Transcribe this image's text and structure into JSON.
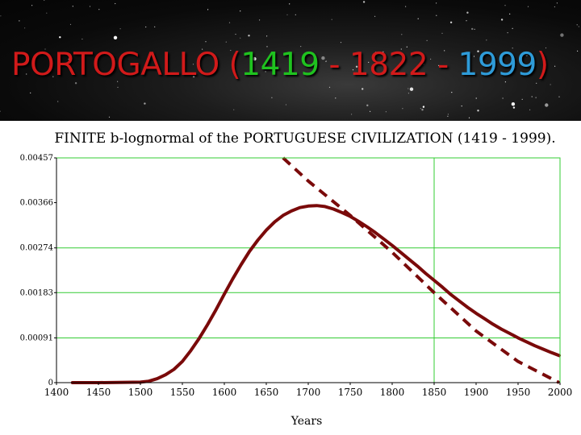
{
  "slide": {
    "title_parts": [
      {
        "text": "PORTOGALLO (",
        "color": "#d11a1a"
      },
      {
        "text": "1419",
        "color": "#1fc21f"
      },
      {
        "text": " - 1822 - ",
        "color": "#d11a1a"
      },
      {
        "text": "1999",
        "color": "#2e9bd8"
      },
      {
        "text": ")",
        "color": "#d11a1a"
      }
    ]
  },
  "chart_data": {
    "type": "line",
    "title": "FINITE b-lognormal of the PORTUGUESE CIVILIZATION (1419 - 1999).",
    "xlabel": "Years",
    "ylabel": "",
    "xlim": [
      1400,
      2000
    ],
    "ylim": [
      0,
      0.00457
    ],
    "x_ticks": [
      1400,
      1450,
      1500,
      1550,
      1600,
      1650,
      1700,
      1750,
      1800,
      1850,
      1900,
      1950,
      2000
    ],
    "y_ticks": [
      0,
      0.00091,
      0.00183,
      0.00274,
      0.00366,
      0.00457
    ],
    "y_tick_labels": [
      "0",
      "0.00091",
      "0.00183",
      "0.00274",
      "0.00366",
      "0.00457"
    ],
    "grid": "partial",
    "gridlines_y": [
      0.00091,
      0.00183,
      0.00274
    ],
    "vertical_line_x": 1850,
    "series": [
      {
        "style": "solid",
        "color": "#7a0a0a",
        "x": [
          1419,
          1450,
          1500,
          1510,
          1520,
          1530,
          1540,
          1550,
          1560,
          1570,
          1580,
          1590,
          1600,
          1610,
          1620,
          1630,
          1640,
          1650,
          1660,
          1670,
          1680,
          1690,
          1700,
          1710,
          1720,
          1730,
          1740,
          1750,
          1760,
          1770,
          1780,
          1790,
          1800,
          1810,
          1820,
          1830,
          1840,
          1850,
          1860,
          1870,
          1880,
          1890,
          1900,
          1910,
          1920,
          1930,
          1940,
          1950,
          1960,
          1970,
          1980,
          1990,
          1999
        ],
        "y": [
          0,
          0,
          1e-05,
          3e-05,
          8e-05,
          0.00016,
          0.00027,
          0.00043,
          0.00065,
          0.0009,
          0.00118,
          0.00148,
          0.0018,
          0.00211,
          0.0024,
          0.00267,
          0.0029,
          0.0031,
          0.00327,
          0.0034,
          0.00349,
          0.00356,
          0.00359,
          0.0036,
          0.00358,
          0.00353,
          0.00346,
          0.00338,
          0.00328,
          0.00317,
          0.00305,
          0.00292,
          0.00279,
          0.00265,
          0.00251,
          0.00237,
          0.00222,
          0.00208,
          0.00194,
          0.00179,
          0.00166,
          0.00153,
          0.00141,
          0.0013,
          0.00119,
          0.00109,
          0.001,
          0.00091,
          0.00083,
          0.00075,
          0.00068,
          0.00061,
          0.00055
        ]
      },
      {
        "style": "dashed",
        "color": "#7a0a0a",
        "x": [
          1670,
          1700,
          1750,
          1800,
          1850,
          1900,
          1950,
          1999
        ],
        "y": [
          0.00457,
          0.0041,
          0.0034,
          0.00265,
          0.00183,
          0.00105,
          0.00043,
          0
        ]
      }
    ]
  }
}
